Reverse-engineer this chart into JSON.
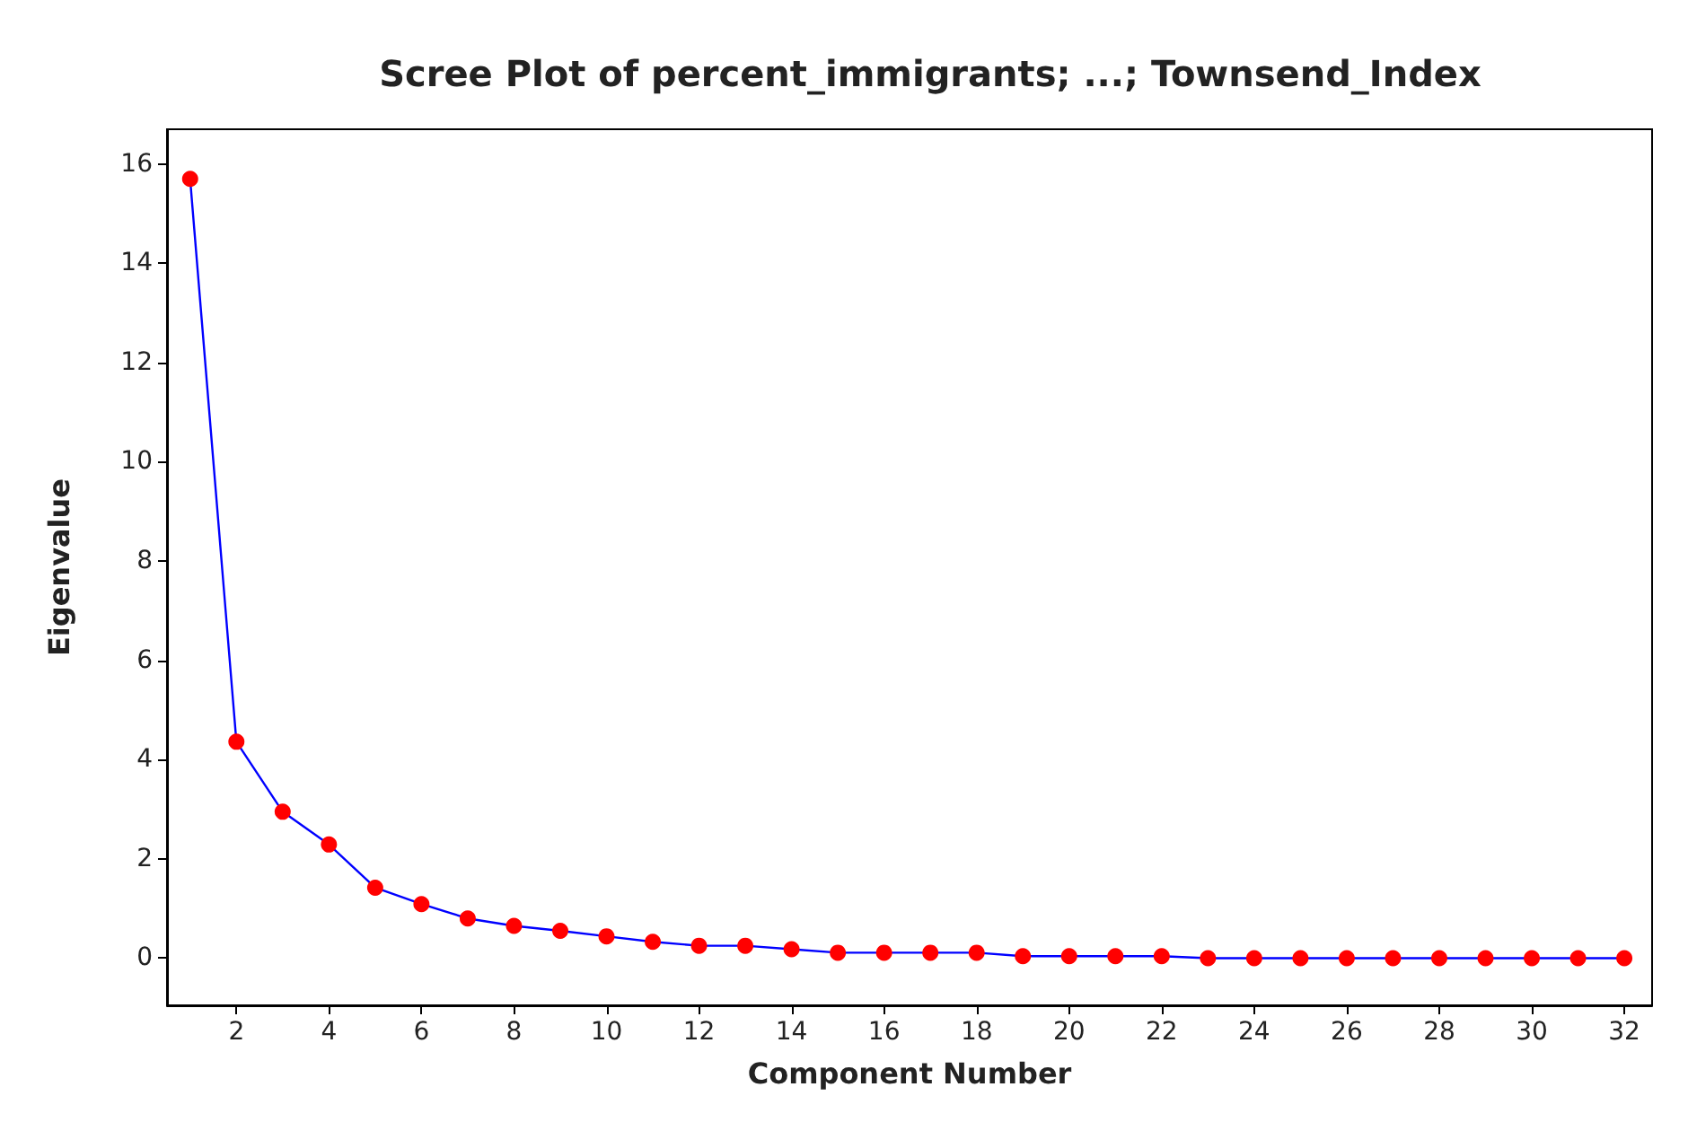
{
  "chart_data": {
    "type": "line",
    "title": "Scree Plot of percent_immigrants; ...; Townsend_Index",
    "xlabel": "Component Number",
    "ylabel": "Eigenvalue",
    "x": [
      1,
      2,
      3,
      4,
      5,
      6,
      7,
      8,
      9,
      10,
      11,
      12,
      13,
      14,
      15,
      16,
      17,
      18,
      19,
      20,
      21,
      22,
      23,
      24,
      25,
      26,
      27,
      28,
      29,
      30,
      31,
      32
    ],
    "series": [
      {
        "color": "#0000ff",
        "colors": [
          "#ff0000",
          "#ff0000",
          "#ff0000",
          "#ff0000",
          "#ff0000",
          "#ff0000",
          "#ff0000",
          "#ff0000",
          "#ff0000",
          "#ff0000",
          "#ff0000",
          "#ff0000",
          "#ff0000",
          "#ff0000",
          "#ff0000",
          "#ff0000",
          "#ff0000",
          "#ff0000",
          "#ff0000",
          "#ff0000",
          "#ff0000",
          "#ff0000",
          "#ff0000",
          "#ff0000",
          "#ff0000",
          "#ff0000",
          "#ff0000",
          "#ff0000",
          "#ff0000",
          "#ff0000",
          "#ff0000",
          "#ff0000"
        ],
        "values": [
          15.7,
          4.36,
          2.95,
          2.29,
          1.42,
          1.09,
          0.8,
          0.65,
          0.55,
          0.44,
          0.33,
          0.25,
          0.25,
          0.18,
          0.11,
          0.11,
          0.11,
          0.11,
          0.04,
          0.04,
          0.04,
          0.04,
          0,
          0,
          0,
          0,
          0,
          0,
          0,
          0,
          0,
          0
        ]
      }
    ],
    "xlim": [
      0.5,
      32.6
    ],
    "xticks": [
      2,
      4,
      6,
      8,
      10,
      12,
      14,
      16,
      18,
      20,
      22,
      24,
      26,
      28,
      30,
      32
    ],
    "ylim": [
      -0.95,
      16.7
    ],
    "yticks": [
      0,
      2,
      4,
      6,
      8,
      10,
      12,
      14,
      16
    ],
    "grid": false,
    "marker": "circle",
    "line_style": "solid"
  }
}
